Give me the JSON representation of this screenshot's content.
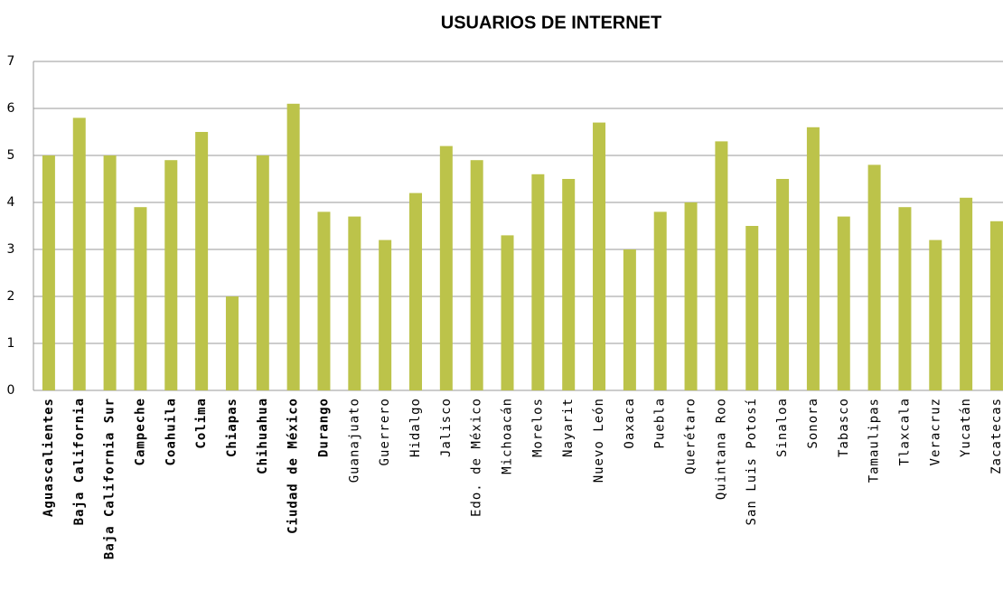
{
  "chart_data": {
    "type": "bar",
    "title": "USUARIOS DE INTERNET",
    "categories": [
      "Aguascalientes",
      "Baja California",
      "Baja California Sur",
      "Campeche",
      "Coahuila",
      "Colima",
      "Chiapas",
      "Chihuahua",
      "Ciudad de México",
      "Durango",
      "Guanajuato",
      "Guerrero",
      "Hidalgo",
      "Jalisco",
      "Edo. de México",
      "Michoacán",
      "Morelos",
      "Nayarit",
      "Nuevo León",
      "Oaxaca",
      "Puebla",
      "Querétaro",
      "Quintana Roo",
      "San Luis Potosí",
      "Sinaloa",
      "Sonora",
      "Tabasco",
      "Tamaulipas",
      "Tlaxcala",
      "Veracruz",
      "Yucatán",
      "Zacatecas"
    ],
    "values": [
      5,
      5.8,
      5,
      3.9,
      4.9,
      5.5,
      2,
      5,
      6.1,
      3.8,
      3.7,
      3.2,
      4.2,
      5.2,
      4.9,
      3.3,
      4.6,
      4.5,
      5.7,
      3,
      3.8,
      4,
      5.3,
      3.5,
      4.5,
      5.6,
      3.7,
      4.8,
      3.9,
      3.2,
      4.1,
      3.6
    ],
    "color": "#bcc34a",
    "ylim": [
      0,
      7
    ],
    "yticks": [
      0,
      1,
      2,
      3,
      4,
      5,
      6,
      7
    ],
    "grid": true
  }
}
